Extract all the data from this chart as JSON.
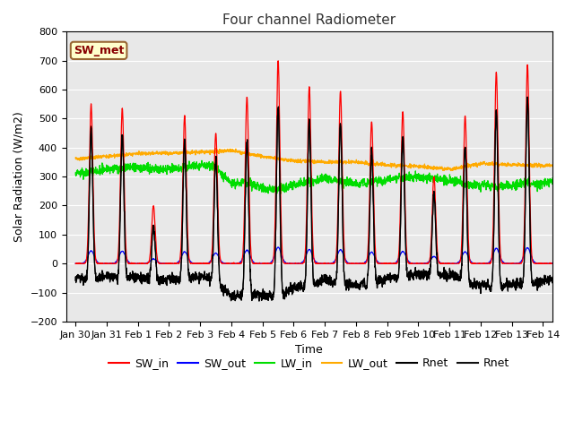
{
  "title": "Four channel Radiometer",
  "xlabel": "Time",
  "ylabel": "Solar Radiation (W/m2)",
  "ylim": [
    -200,
    800
  ],
  "yticks": [
    -200,
    -100,
    0,
    100,
    200,
    300,
    400,
    500,
    600,
    700,
    800
  ],
  "xtick_labels": [
    "Jan 30",
    "Jan 31",
    "Feb 1",
    "Feb 2",
    "Feb 3",
    "Feb 4",
    "Feb 5",
    "Feb 6",
    "Feb 7",
    "Feb 8",
    "Feb 9",
    "Feb 10",
    "Feb 11",
    "Feb 12",
    "Feb 13",
    "Feb 14"
  ],
  "colors": {
    "SW_in": "#ff0000",
    "SW_out": "#0000ff",
    "LW_in": "#00dd00",
    "LW_out": "#ffaa00",
    "Rnet1": "#000000",
    "Rnet2": "#111111"
  },
  "background_color": "#e8e8e8",
  "annotation_text": "SW_met",
  "annotation_box_color": "#ffffcc",
  "annotation_border_color": "#996633",
  "title_color": "#333333",
  "annotation_text_color": "#880000",
  "title_fontsize": 11,
  "axis_label_fontsize": 9,
  "tick_fontsize": 8,
  "legend_fontsize": 9
}
